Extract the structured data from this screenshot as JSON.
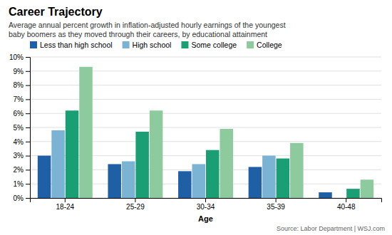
{
  "chart_data": {
    "type": "bar",
    "title": "Career Trajectory",
    "subtitle": "Average annual percent growth in inflation-adjusted hourly earnings of the youngest\nbaby boomers as they moved through their careers, by educational attainment",
    "source": "Source: Labor Department  |  WSJ.com",
    "xlabel": "Age",
    "categories": [
      "18-24",
      "25-29",
      "30-34",
      "35-39",
      "40-48"
    ],
    "series": [
      {
        "name": "Less than high school",
        "color": "#1f5fa6",
        "values": [
          3.0,
          2.4,
          1.9,
          2.2,
          0.4
        ]
      },
      {
        "name": "High school",
        "color": "#7ab3d4",
        "values": [
          4.8,
          2.6,
          2.4,
          3.0,
          0.0
        ]
      },
      {
        "name": "Some college",
        "color": "#1a9e74",
        "values": [
          6.2,
          4.7,
          3.4,
          2.8,
          0.65
        ]
      },
      {
        "name": "College",
        "color": "#8dca9e",
        "values": [
          9.3,
          6.2,
          4.9,
          3.9,
          1.3
        ]
      }
    ],
    "ylim": [
      0,
      10
    ],
    "yticks": [
      {
        "value": 0,
        "label": "0%"
      },
      {
        "value": 1,
        "label": "1%"
      },
      {
        "value": 2,
        "label": "2%"
      },
      {
        "value": 3,
        "label": "3%"
      },
      {
        "value": 4,
        "label": "4%"
      },
      {
        "value": 5,
        "label": "5%"
      },
      {
        "value": 6,
        "label": "6%"
      },
      {
        "value": 7,
        "label": "7%"
      },
      {
        "value": 8,
        "label": "8%"
      },
      {
        "value": 9,
        "label": "9%"
      },
      {
        "value": 10,
        "label": "10%"
      }
    ],
    "grid": true,
    "legend": "top left"
  }
}
